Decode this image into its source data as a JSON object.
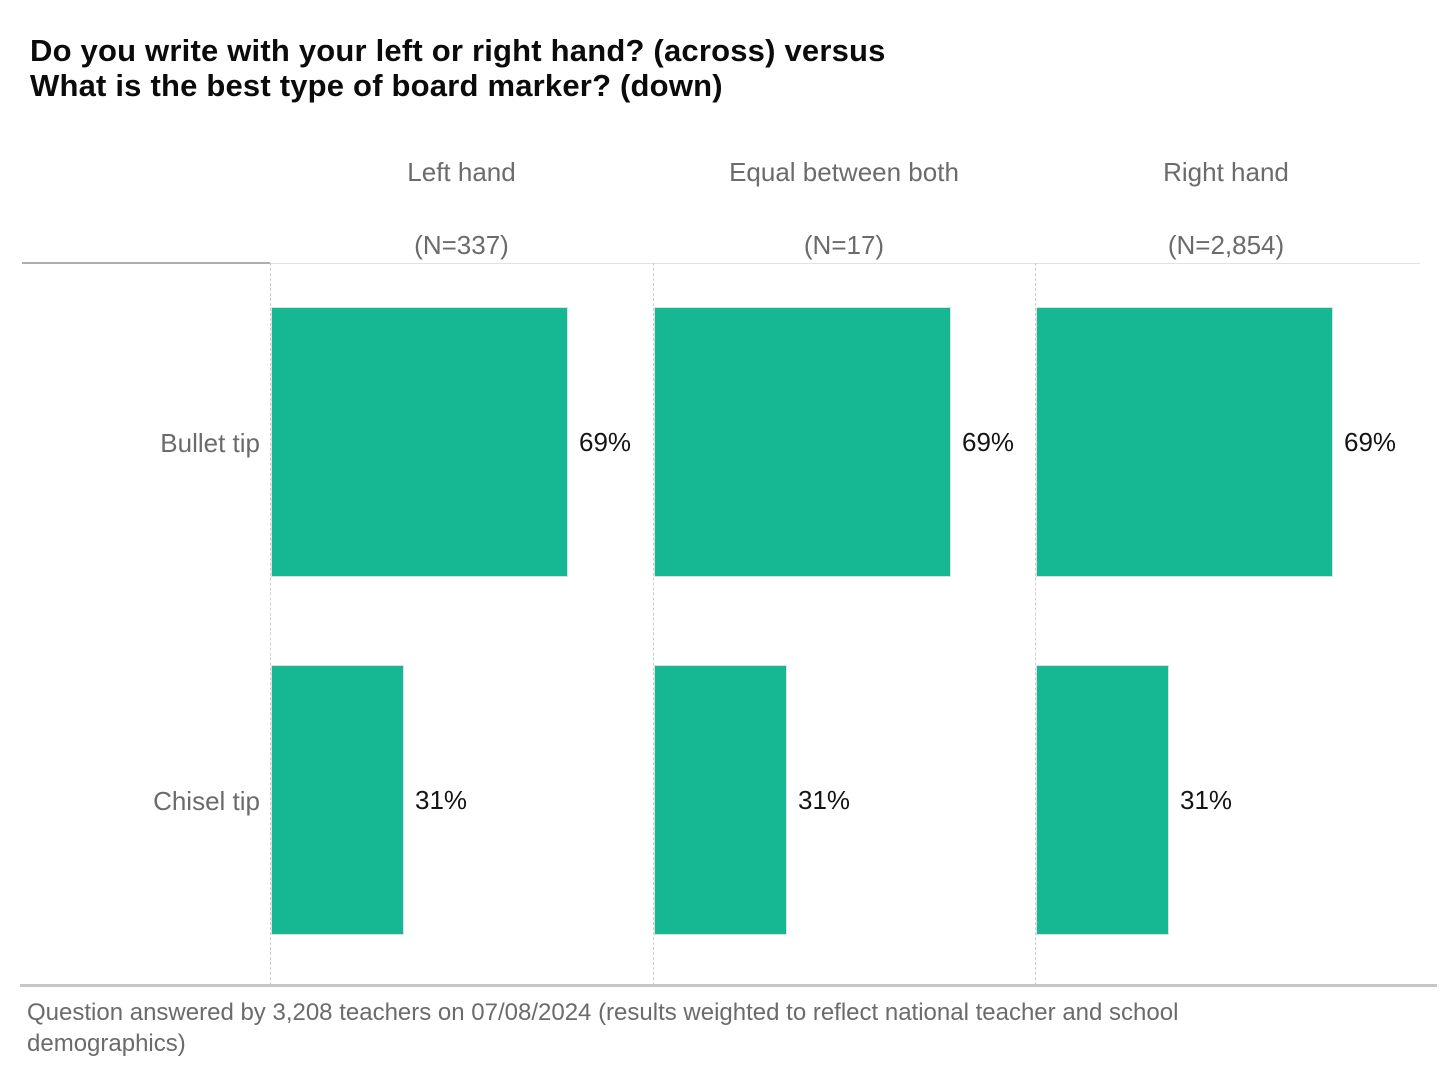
{
  "title": {
    "line1": "Do you write with your left or right hand? (across) versus",
    "line2": "What is the best type of board marker? (down)"
  },
  "chart_data": {
    "type": "bar",
    "orientation": "horizontal",
    "title": "Do you write with your left or right hand? (across) versus What is the best type of board marker? (down)",
    "categories": [
      "Bullet tip",
      "Chisel tip"
    ],
    "columns": [
      {
        "label": "Left hand",
        "n_label": "(N=337)"
      },
      {
        "label": "Equal between both",
        "n_label": "(N=17)"
      },
      {
        "label": "Right hand",
        "n_label": "(N=2,854)"
      }
    ],
    "series": [
      {
        "name": "Left hand",
        "values": [
          69,
          31
        ]
      },
      {
        "name": "Equal between both",
        "values": [
          69,
          31
        ]
      },
      {
        "name": "Right hand",
        "values": [
          69,
          31
        ]
      }
    ],
    "value_labels": [
      [
        "69%",
        "69%",
        "69%"
      ],
      [
        "31%",
        "31%",
        "31%"
      ]
    ],
    "unit": "%",
    "xlim": [
      0,
      100
    ],
    "bar_color": "#15B892",
    "grid": "dashed column separators",
    "legend": "none"
  },
  "footer": {
    "text": "Question answered by 3,208 teachers on 07/08/2024 (results weighted to reflect national teacher and school demographics)"
  }
}
